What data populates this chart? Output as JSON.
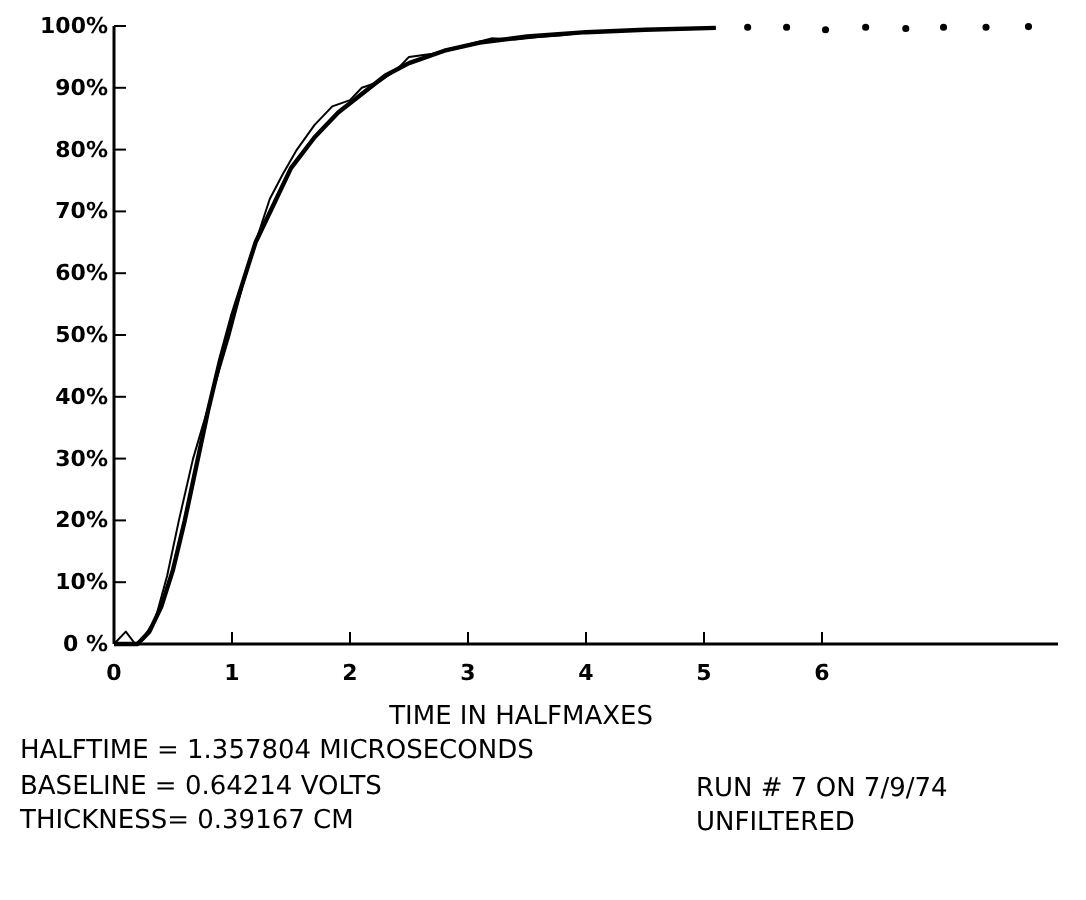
{
  "chart_data": {
    "type": "line",
    "xlabel": "TIME IN HALFMAXES",
    "xlim": [
      0,
      8
    ],
    "xticks": [
      0,
      1,
      2,
      3,
      4,
      5,
      6
    ],
    "ylim": [
      0,
      100
    ],
    "yticks": [
      {
        "value": 0,
        "label": "0 %"
      },
      {
        "value": 10,
        "label": "10%"
      },
      {
        "value": 20,
        "label": "20%"
      },
      {
        "value": 30,
        "label": "30%"
      },
      {
        "value": 40,
        "label": "40%"
      },
      {
        "value": 50,
        "label": "50%"
      },
      {
        "value": 60,
        "label": "60%"
      },
      {
        "value": 70,
        "label": "70%"
      },
      {
        "value": 80,
        "label": "80%"
      },
      {
        "value": 90,
        "label": "90%"
      },
      {
        "value": 100,
        "label": "100%"
      }
    ],
    "grid": false,
    "series": [
      {
        "color": "#000000",
        "x": [
          0,
          0.1,
          0.18,
          0.25,
          0.35,
          0.45,
          0.55,
          0.67,
          0.84,
          0.98,
          1.09,
          1.2,
          1.32,
          1.43,
          1.55,
          1.7,
          1.85,
          2.0,
          2.1,
          2.25,
          2.4,
          2.5,
          2.7,
          2.9,
          3.1,
          3.2,
          3.4,
          3.6,
          3.8,
          4.0,
          4.3,
          4.6,
          4.9,
          5.1
        ],
        "values": [
          0,
          2,
          0,
          1,
          4,
          11,
          20,
          30,
          41,
          50,
          58,
          65,
          72,
          76,
          80,
          84,
          87,
          88,
          90,
          91,
          93,
          95,
          95.5,
          96.5,
          97.5,
          98,
          97.8,
          98.2,
          98.5,
          99,
          99.2,
          99.4,
          99.5,
          99.7
        ]
      },
      {
        "color": "#000000",
        "x": [
          0,
          0.2,
          0.3,
          0.4,
          0.5,
          0.6,
          0.7,
          0.8,
          0.9,
          1.0,
          1.1,
          1.2,
          1.35,
          1.5,
          1.7,
          1.9,
          2.1,
          2.3,
          2.5,
          2.8,
          3.1,
          3.5,
          4.0,
          4.5,
          5.1
        ],
        "values": [
          0,
          0,
          2,
          6,
          12,
          20,
          29,
          38,
          46,
          53,
          59,
          65,
          71,
          77,
          82,
          86,
          89,
          92,
          94,
          96,
          97.3,
          98.3,
          99,
          99.4,
          99.7
        ]
      },
      {
        "type": "scatter",
        "color": "#000000",
        "marker": "circle",
        "x": [
          5.37,
          5.7,
          6.03,
          6.37,
          6.71,
          7.03,
          7.39,
          7.75
        ],
        "values": [
          99.8,
          99.8,
          99.4,
          99.8,
          99.6,
          99.8,
          99.8,
          99.9
        ]
      }
    ],
    "annotations": [
      "HALFTIME = 1.357804 MICROSECONDS",
      "BASELINE = 0.64214 VOLTS",
      "THICKNESS= 0.39167 CM",
      "RUN # 7 ON 7/9/74",
      "UNFILTERED"
    ]
  }
}
